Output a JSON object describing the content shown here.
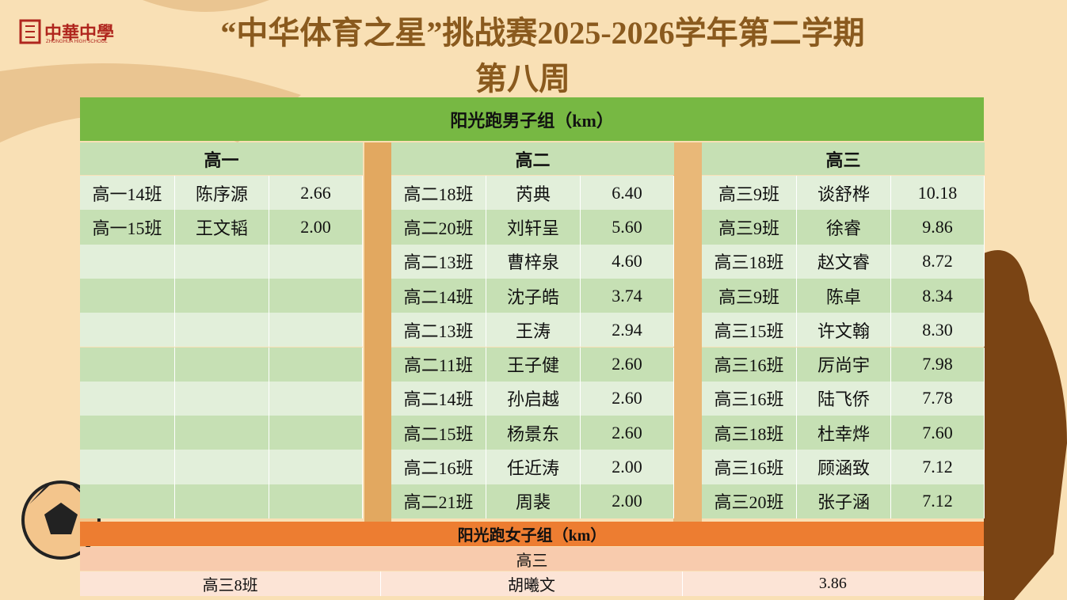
{
  "header": {
    "logo": {
      "name": "中華中學",
      "subtitle": "ZHONGHUA HIGH SCHOOL"
    },
    "title": "“中华体育之星”挑战赛2025-2026学年第二学期",
    "subtitle": "第八周"
  },
  "boys": {
    "title": "阳光跑男子组（km）",
    "groups": [
      {
        "grade": "高一",
        "rows": [
          [
            "高一14班",
            "陈序源",
            "2.66"
          ],
          [
            "高一15班",
            "王文韬",
            "2.00"
          ]
        ]
      },
      {
        "grade": "高二",
        "rows": [
          [
            "高二18班",
            "芮典",
            "6.40"
          ],
          [
            "高二20班",
            "刘轩呈",
            "5.60"
          ],
          [
            "高二13班",
            "曹梓泉",
            "4.60"
          ],
          [
            "高二14班",
            "沈子皓",
            "3.74"
          ],
          [
            "高二13班",
            "王涛",
            "2.94"
          ],
          [
            "高二11班",
            "王子健",
            "2.60"
          ],
          [
            "高二14班",
            "孙启越",
            "2.60"
          ],
          [
            "高二15班",
            "杨景东",
            "2.60"
          ],
          [
            "高二16班",
            "任近涛",
            "2.00"
          ],
          [
            "高二21班",
            "周裴",
            "2.00"
          ]
        ]
      },
      {
        "grade": "高三",
        "rows": [
          [
            "高三9班",
            "谈舒桦",
            "10.18"
          ],
          [
            "高三9班",
            "徐睿",
            "9.86"
          ],
          [
            "高三18班",
            "赵文睿",
            "8.72"
          ],
          [
            "高三9班",
            "陈卓",
            "8.34"
          ],
          [
            "高三15班",
            "许文翰",
            "8.30"
          ],
          [
            "高三16班",
            "厉尚宇",
            "7.98"
          ],
          [
            "高三16班",
            "陆飞侨",
            "7.78"
          ],
          [
            "高三18班",
            "杜幸烨",
            "7.60"
          ],
          [
            "高三16班",
            "顾涵致",
            "7.12"
          ],
          [
            "高三20班",
            "张子涵",
            "7.12"
          ]
        ]
      }
    ]
  },
  "girls": {
    "title": "阳光跑女子组（km）",
    "groups": [
      {
        "grade": "高三",
        "rows": [
          [
            "高三8班",
            "胡曦文",
            "3.86"
          ]
        ]
      }
    ]
  }
}
